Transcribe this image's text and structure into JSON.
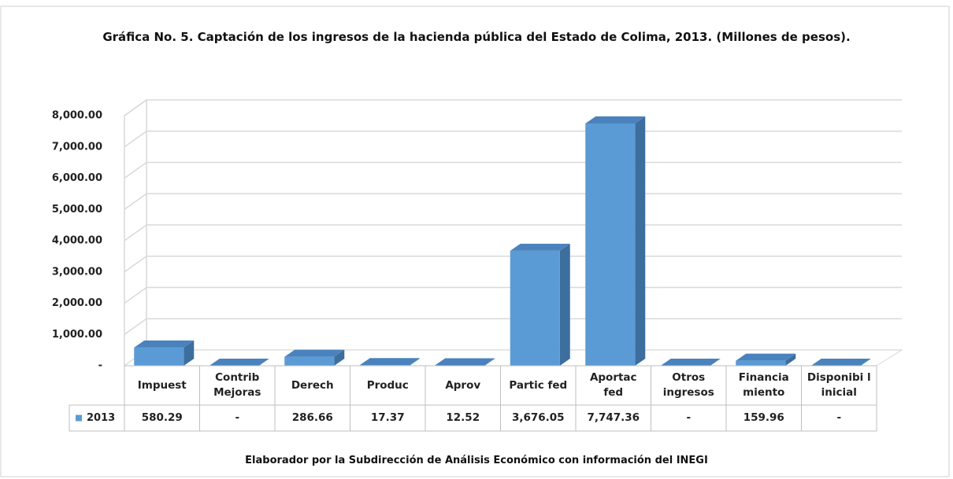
{
  "chart_data": {
    "type": "bar3d",
    "title": "Gráfica No.  5. Captación de los ingresos de la hacienda pública del Estado de Colima, 2013. (Millones de pesos).",
    "footer": "Elaborador por la Subdirección de Análisis Económico con información del INEGI",
    "categories": [
      "Impuest",
      "Contrib Mejoras",
      "Derech",
      "Produc",
      "Aprov",
      "Partic fed",
      "Aportac fed",
      "Otros ingresos",
      "Financia miento",
      "Disponibi l inicial"
    ],
    "series": [
      {
        "name": "2013",
        "color": "#5b9bd5",
        "values": [
          580.29,
          0,
          286.66,
          17.37,
          12.52,
          3676.05,
          7747.36,
          0,
          159.96,
          0
        ],
        "value_labels": [
          "580.29",
          "-",
          "286.66",
          "17.37",
          "12.52",
          "3,676.05",
          "7,747.36",
          "-",
          "159.96",
          "-"
        ]
      }
    ],
    "ylim": [
      0,
      8000
    ],
    "yticks": [
      {
        "value": 0,
        "label": "-"
      },
      {
        "value": 1000,
        "label": "1,000.00"
      },
      {
        "value": 2000,
        "label": "2,000.00"
      },
      {
        "value": 3000,
        "label": "3,000.00"
      },
      {
        "value": 4000,
        "label": "4,000.00"
      },
      {
        "value": 5000,
        "label": "5,000.00"
      },
      {
        "value": 6000,
        "label": "6,000.00"
      },
      {
        "value": 7000,
        "label": "7,000.00"
      },
      {
        "value": 8000,
        "label": "8,000.00"
      }
    ],
    "grid": true
  }
}
